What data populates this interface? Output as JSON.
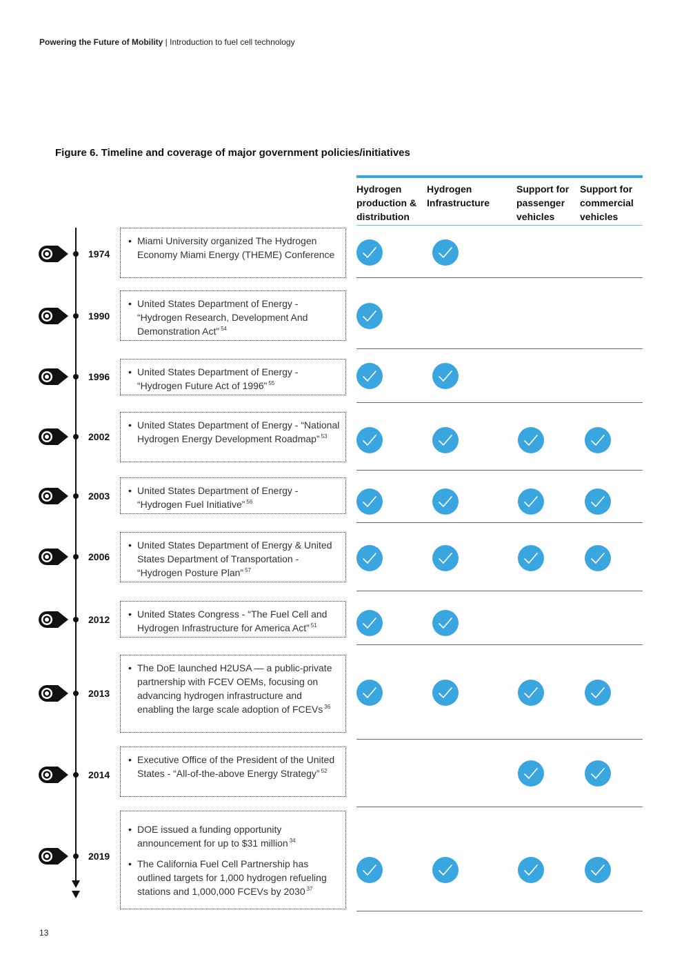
{
  "header": {
    "publication": "Powering the Future of Mobility",
    "separator": "|",
    "section": "Introduction to fuel cell technology"
  },
  "figure": {
    "title": "Figure 6. Timeline and coverage of major government policies/initiatives"
  },
  "columns": [
    "Hydrogen\nproduction &\ndistribution",
    "Hydrogen\nInfrastructure",
    "Support for\npassenger\nvehicles",
    "Support for\ncommercial\nvehicles"
  ],
  "rows": [
    {
      "year": "1974",
      "items": [
        {
          "text": "Miami University organized The Hydrogen Economy Miami Energy (THEME) Conference",
          "ref": ""
        }
      ],
      "coverage": [
        true,
        true,
        false,
        false
      ]
    },
    {
      "year": "1990",
      "items": [
        {
          "text": "United States Department of Energy - “Hydrogen Research, Development And Demonstration Act”",
          "ref": "54"
        }
      ],
      "coverage": [
        true,
        false,
        false,
        false
      ]
    },
    {
      "year": "1996",
      "items": [
        {
          "text": "United States Department of Energy - “Hydrogen Future Act of 1996”",
          "ref": "55"
        }
      ],
      "coverage": [
        true,
        true,
        false,
        false
      ]
    },
    {
      "year": "2002",
      "items": [
        {
          "text": "United States Department of Energy - “National Hydrogen Energy Development Roadmap”",
          "ref": "53"
        }
      ],
      "coverage": [
        true,
        true,
        true,
        true
      ]
    },
    {
      "year": "2003",
      "items": [
        {
          "text": "United States Department of Energy - “Hydrogen Fuel Initiative”",
          "ref": "56"
        }
      ],
      "coverage": [
        true,
        true,
        true,
        true
      ]
    },
    {
      "year": "2006",
      "items": [
        {
          "text": "United States Department of Energy & United States Department of Transportation - “Hydrogen Posture Plan”",
          "ref": "57"
        }
      ],
      "coverage": [
        true,
        true,
        true,
        true
      ]
    },
    {
      "year": "2012",
      "items": [
        {
          "text": "United States Congress - “The Fuel Cell and Hydrogen Infrastructure for America Act”",
          "ref": "51"
        }
      ],
      "coverage": [
        true,
        true,
        false,
        false
      ]
    },
    {
      "year": "2013",
      "items": [
        {
          "text": "The DoE launched H2USA — a public-private partnership with FCEV OEMs, focusing on advancing hydrogen infrastructure and enabling the large scale adoption of FCEVs",
          "ref": "36"
        }
      ],
      "coverage": [
        true,
        true,
        true,
        true
      ]
    },
    {
      "year": "2014",
      "items": [
        {
          "text": "Executive Office of the President of the United States - “All-of-the-above Energy Strategy”",
          "ref": "52"
        }
      ],
      "coverage": [
        false,
        false,
        true,
        true
      ]
    },
    {
      "year": "2019",
      "items": [
        {
          "text": "DOE issued a funding opportunity announcement for up to $31 million",
          "ref": "34"
        },
        {
          "text": "The California Fuel Cell Partnership has outlined targets for 1,000 hydrogen refueling stations and 1,000,000 FCEVs by 2030",
          "ref": "37"
        }
      ],
      "coverage": [
        true,
        true,
        true,
        true
      ]
    }
  ],
  "colors": {
    "accent": "#33a8e0",
    "check_fill": "#3aa6e0",
    "text": "#1a1a1a"
  },
  "icons": {
    "check": "check-circle-icon",
    "marker": "location-pin-icon",
    "arrow": "arrow-down-icon"
  },
  "page": {
    "number": "13"
  }
}
